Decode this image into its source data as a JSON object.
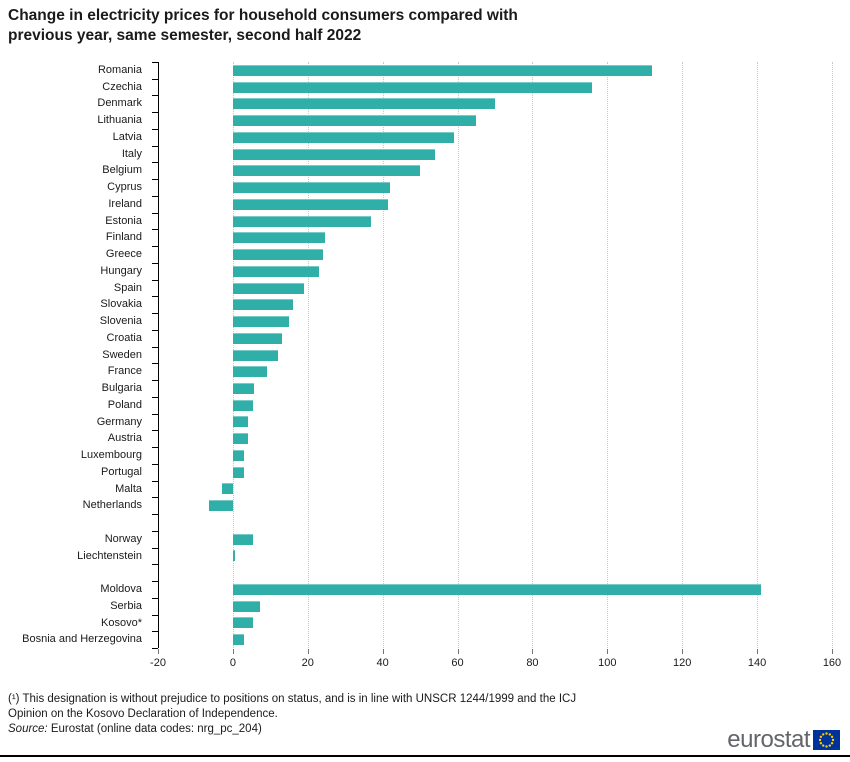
{
  "title": {
    "line1": "Change in electricity prices for household consumers compared with",
    "line2": "previous year, same semester, second half 2022"
  },
  "chart_data": {
    "type": "bar",
    "orientation": "horizontal",
    "title": "Change in electricity prices for household consumers compared with previous year, same semester, second half 2022",
    "xlim": [
      -20,
      160
    ],
    "x_ticks": [
      -20,
      0,
      20,
      40,
      60,
      80,
      100,
      120,
      140,
      160
    ],
    "grid": true,
    "legend": "none",
    "bar_color": "#30AFA9",
    "groups": [
      {
        "categories": [
          "Romania",
          "Czechia",
          "Denmark",
          "Lithuania",
          "Latvia",
          "Italy",
          "Belgium",
          "Cyprus",
          "Ireland",
          "Estonia",
          "Finland",
          "Greece",
          "Hungary",
          "Spain",
          "Slovakia",
          "Slovenia",
          "Croatia",
          "Sweden",
          "France",
          "Bulgaria",
          "Poland",
          "Germany",
          "Austria",
          "Luxembourg",
          "Portugal",
          "Malta",
          "Netherlands"
        ],
        "values": [
          112,
          96,
          70,
          65,
          59,
          54,
          50,
          42,
          41.5,
          37,
          24.5,
          24,
          23,
          19,
          16,
          15,
          13,
          12,
          9,
          5.6,
          5.5,
          4,
          4,
          3.1,
          2.9,
          -2.8,
          -6.5
        ]
      },
      {
        "categories": [
          "Norway",
          "Liechtenstein"
        ],
        "values": [
          5.5,
          0.5
        ]
      },
      {
        "categories": [
          "Moldova",
          "Serbia",
          "Kosovo*",
          "Bosnia and Herzegovina"
        ],
        "values": [
          141,
          7.3,
          5.4,
          3.1
        ]
      }
    ]
  },
  "footer": {
    "footnote_line1": "(¹) This designation is without prejudice to positions on status, and is in line with UNSCR 1244/1999 and the ICJ",
    "footnote_line2": "Opinion on the Kosovo Declaration of Independence.",
    "source_label": "Source:",
    "source_text": " Eurostat (online data codes: nrg_pc_204)",
    "logo_text": "eurostat"
  }
}
